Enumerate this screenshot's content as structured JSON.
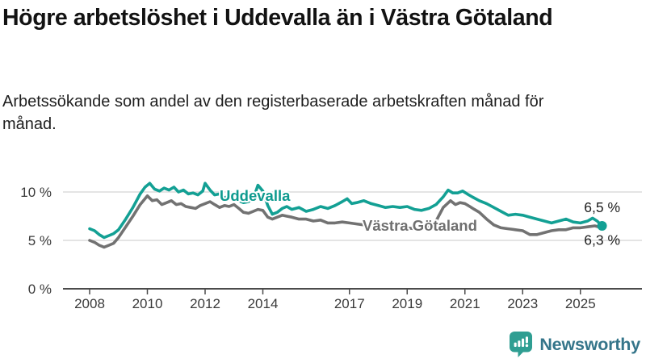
{
  "chart_data": {
    "type": "line",
    "title": "Högre arbetslöshet i Uddevalla än i Västra Götaland",
    "subtitle": "Arbetssökande som andel av den registerbaserade arbetskraften månad för månad.",
    "xlabel": "",
    "ylabel": "",
    "y_unit": "percent",
    "x_unit": "year (monthly observations)",
    "xlim": [
      2007.1,
      2027.1
    ],
    "ylim": [
      0,
      12
    ],
    "grid": "horizontal",
    "yticks": [
      {
        "value": 0,
        "label": "0 %"
      },
      {
        "value": 5,
        "label": "5 %"
      },
      {
        "value": 10,
        "label": "10 %"
      }
    ],
    "xticks": [
      {
        "value": 2008,
        "label": "2008"
      },
      {
        "value": 2010,
        "label": "2010"
      },
      {
        "value": 2012,
        "label": "2012"
      },
      {
        "value": 2014,
        "label": "2014"
      },
      {
        "value": 2017,
        "label": "2017"
      },
      {
        "value": 2019,
        "label": "2019"
      },
      {
        "value": 2021,
        "label": "2021"
      },
      {
        "value": 2023,
        "label": "2023"
      },
      {
        "value": 2025,
        "label": "2025"
      }
    ],
    "axis_color": "#4b4b4b",
    "grid_color": "#dbdbdb",
    "series": [
      {
        "name": "Västra Götaland",
        "color": "#727272",
        "label_color": "#6f6f6f",
        "end_label": "6,3 %",
        "points": [
          [
            2008.0,
            5.0
          ],
          [
            2008.17,
            4.8
          ],
          [
            2008.33,
            4.5
          ],
          [
            2008.5,
            4.3
          ],
          [
            2008.67,
            4.5
          ],
          [
            2008.83,
            4.7
          ],
          [
            2009.0,
            5.3
          ],
          [
            2009.25,
            6.4
          ],
          [
            2009.5,
            7.5
          ],
          [
            2009.75,
            8.7
          ],
          [
            2010.0,
            9.6
          ],
          [
            2010.17,
            9.1
          ],
          [
            2010.33,
            9.2
          ],
          [
            2010.5,
            8.7
          ],
          [
            2010.67,
            8.9
          ],
          [
            2010.83,
            9.1
          ],
          [
            2011.0,
            8.7
          ],
          [
            2011.17,
            8.8
          ],
          [
            2011.33,
            8.5
          ],
          [
            2011.5,
            8.4
          ],
          [
            2011.67,
            8.3
          ],
          [
            2011.83,
            8.6
          ],
          [
            2012.0,
            8.8
          ],
          [
            2012.17,
            9.0
          ],
          [
            2012.33,
            8.7
          ],
          [
            2012.5,
            8.4
          ],
          [
            2012.67,
            8.6
          ],
          [
            2012.83,
            8.5
          ],
          [
            2013.0,
            8.7
          ],
          [
            2013.17,
            8.3
          ],
          [
            2013.33,
            7.9
          ],
          [
            2013.5,
            7.8
          ],
          [
            2013.67,
            8.0
          ],
          [
            2013.83,
            8.2
          ],
          [
            2014.0,
            8.1
          ],
          [
            2014.17,
            7.4
          ],
          [
            2014.33,
            7.2
          ],
          [
            2014.5,
            7.4
          ],
          [
            2014.67,
            7.6
          ],
          [
            2014.83,
            7.5
          ],
          [
            2015.0,
            7.4
          ],
          [
            2015.25,
            7.2
          ],
          [
            2015.5,
            7.2
          ],
          [
            2015.75,
            7.0
          ],
          [
            2016.0,
            7.1
          ],
          [
            2016.25,
            6.8
          ],
          [
            2016.5,
            6.8
          ],
          [
            2016.75,
            6.9
          ],
          [
            2017.0,
            6.8
          ],
          [
            2017.25,
            6.7
          ],
          [
            2017.5,
            6.6
          ],
          [
            2017.75,
            6.5
          ],
          [
            2018.0,
            6.4
          ],
          [
            2018.25,
            6.3
          ],
          [
            2018.5,
            6.2
          ],
          [
            2018.75,
            6.3
          ],
          [
            2019.0,
            6.3
          ],
          [
            2019.25,
            6.2
          ],
          [
            2019.5,
            6.3
          ],
          [
            2019.75,
            6.5
          ],
          [
            2020.0,
            7.0
          ],
          [
            2020.25,
            8.4
          ],
          [
            2020.5,
            9.1
          ],
          [
            2020.67,
            8.7
          ],
          [
            2020.83,
            8.9
          ],
          [
            2021.0,
            8.8
          ],
          [
            2021.17,
            8.5
          ],
          [
            2021.33,
            8.2
          ],
          [
            2021.5,
            7.9
          ],
          [
            2021.75,
            7.2
          ],
          [
            2022.0,
            6.6
          ],
          [
            2022.25,
            6.3
          ],
          [
            2022.5,
            6.2
          ],
          [
            2022.75,
            6.1
          ],
          [
            2023.0,
            6.0
          ],
          [
            2023.25,
            5.6
          ],
          [
            2023.5,
            5.6
          ],
          [
            2023.75,
            5.8
          ],
          [
            2024.0,
            6.0
          ],
          [
            2024.25,
            6.1
          ],
          [
            2024.5,
            6.1
          ],
          [
            2024.75,
            6.3
          ],
          [
            2025.0,
            6.3
          ],
          [
            2025.25,
            6.4
          ],
          [
            2025.5,
            6.5
          ],
          [
            2025.75,
            6.3
          ]
        ]
      },
      {
        "name": "Uddevalla",
        "color": "#13a094",
        "label_color": "#0e9a8f",
        "end_label": "6,5 %",
        "points": [
          [
            2008.0,
            6.2
          ],
          [
            2008.17,
            6.0
          ],
          [
            2008.33,
            5.6
          ],
          [
            2008.5,
            5.3
          ],
          [
            2008.67,
            5.5
          ],
          [
            2008.83,
            5.7
          ],
          [
            2009.0,
            6.1
          ],
          [
            2009.25,
            7.2
          ],
          [
            2009.5,
            8.4
          ],
          [
            2009.75,
            9.8
          ],
          [
            2009.92,
            10.5
          ],
          [
            2010.08,
            10.9
          ],
          [
            2010.25,
            10.3
          ],
          [
            2010.42,
            10.1
          ],
          [
            2010.58,
            10.4
          ],
          [
            2010.75,
            10.2
          ],
          [
            2010.92,
            10.5
          ],
          [
            2011.08,
            10.0
          ],
          [
            2011.25,
            10.2
          ],
          [
            2011.42,
            9.8
          ],
          [
            2011.58,
            9.9
          ],
          [
            2011.75,
            9.7
          ],
          [
            2011.92,
            10.1
          ],
          [
            2012.0,
            10.9
          ],
          [
            2012.17,
            10.2
          ],
          [
            2012.33,
            9.7
          ],
          [
            2012.5,
            9.8
          ],
          [
            2012.67,
            9.4
          ],
          [
            2012.83,
            9.6
          ],
          [
            2013.0,
            9.7
          ],
          [
            2013.17,
            9.1
          ],
          [
            2013.33,
            8.9
          ],
          [
            2013.5,
            9.0
          ],
          [
            2013.67,
            9.3
          ],
          [
            2013.83,
            10.7
          ],
          [
            2014.0,
            10.1
          ],
          [
            2014.17,
            8.6
          ],
          [
            2014.33,
            7.7
          ],
          [
            2014.5,
            7.9
          ],
          [
            2014.67,
            8.3
          ],
          [
            2014.83,
            8.5
          ],
          [
            2015.0,
            8.2
          ],
          [
            2015.25,
            8.4
          ],
          [
            2015.5,
            8.0
          ],
          [
            2015.75,
            8.2
          ],
          [
            2016.0,
            8.5
          ],
          [
            2016.25,
            8.3
          ],
          [
            2016.5,
            8.6
          ],
          [
            2016.75,
            9.0
          ],
          [
            2016.92,
            9.3
          ],
          [
            2017.08,
            8.8
          ],
          [
            2017.25,
            8.9
          ],
          [
            2017.5,
            9.1
          ],
          [
            2017.75,
            8.8
          ],
          [
            2018.0,
            8.6
          ],
          [
            2018.25,
            8.4
          ],
          [
            2018.5,
            8.5
          ],
          [
            2018.75,
            8.4
          ],
          [
            2019.0,
            8.5
          ],
          [
            2019.25,
            8.2
          ],
          [
            2019.5,
            8.1
          ],
          [
            2019.75,
            8.3
          ],
          [
            2020.0,
            8.7
          ],
          [
            2020.25,
            9.5
          ],
          [
            2020.42,
            10.2
          ],
          [
            2020.58,
            9.9
          ],
          [
            2020.75,
            9.9
          ],
          [
            2020.92,
            10.1
          ],
          [
            2021.08,
            9.8
          ],
          [
            2021.25,
            9.5
          ],
          [
            2021.5,
            9.1
          ],
          [
            2021.75,
            8.8
          ],
          [
            2022.0,
            8.4
          ],
          [
            2022.25,
            8.0
          ],
          [
            2022.5,
            7.6
          ],
          [
            2022.75,
            7.7
          ],
          [
            2023.0,
            7.6
          ],
          [
            2023.25,
            7.4
          ],
          [
            2023.5,
            7.2
          ],
          [
            2023.75,
            7.0
          ],
          [
            2024.0,
            6.8
          ],
          [
            2024.25,
            7.0
          ],
          [
            2024.5,
            7.2
          ],
          [
            2024.75,
            6.9
          ],
          [
            2025.0,
            6.8
          ],
          [
            2025.25,
            7.0
          ],
          [
            2025.42,
            7.3
          ],
          [
            2025.58,
            7.0
          ],
          [
            2025.75,
            6.5
          ]
        ]
      }
    ],
    "latest_marker": {
      "series": "Uddevalla",
      "x": 2025.75,
      "y": 6.5,
      "color": "#13a094"
    }
  },
  "logo": {
    "text": "Newsworthy",
    "icon": "newsworthy-speech-bubble-bar-chart-icon",
    "icon_color": "#2f9e92",
    "text_color": "#35758a"
  }
}
